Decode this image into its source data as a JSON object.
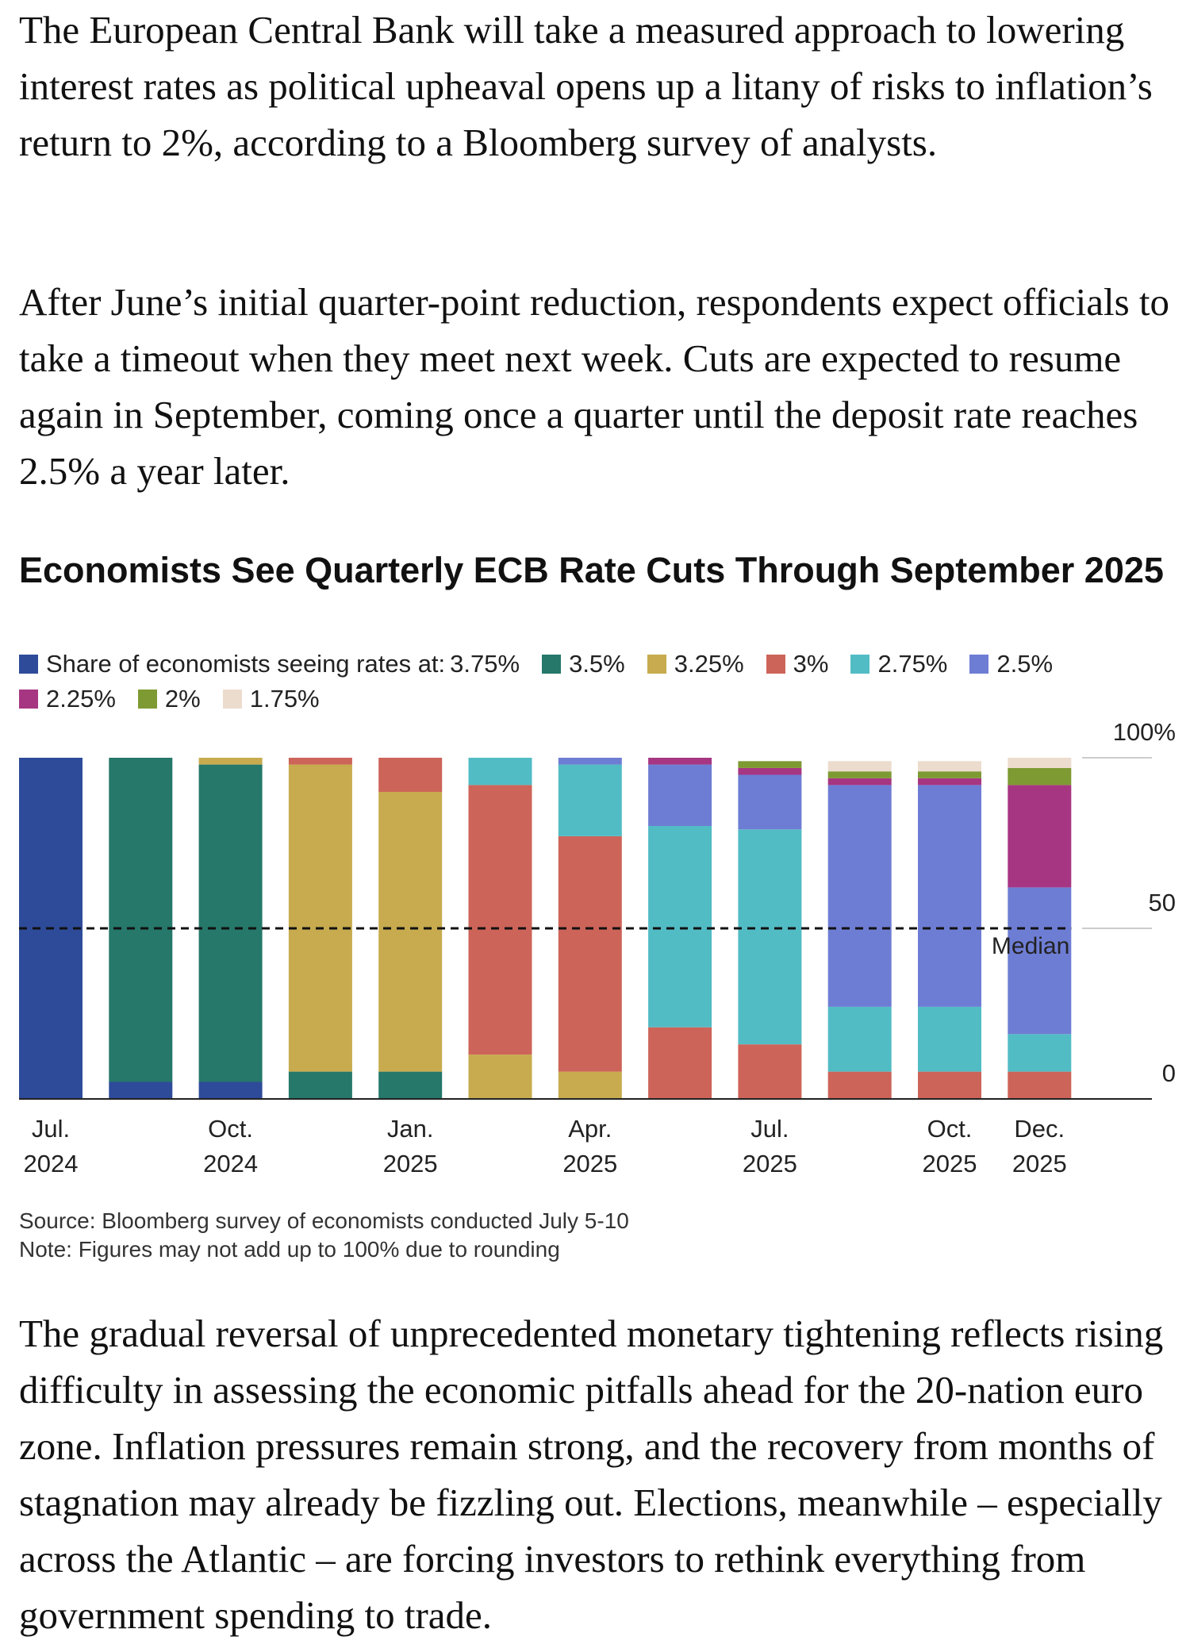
{
  "article": {
    "paragraph_1": "The European Central Bank will take a measured approach to lowering interest rates as political upheaval opens up a litany of risks to inflation’s return to 2%, according to a Bloomberg survey of analysts.",
    "paragraph_2": "After June’s initial quarter-point reduction, respondents expect officials to take a timeout when they meet next week. Cuts are expected to resume again in September, coming once a quarter until the deposit rate reaches 2.5% a year later.",
    "paragraph_3": "The gradual reversal of unprecedented monetary tightening reflects rising difficulty in assessing the economic pitfalls ahead for the 20-nation euro zone. Inflation pressures remain strong, and the recovery from months of stagnation may already be fizzling out. Elections, meanwhile – especially across the Atlantic – are forcing investors to rethink everything from government spending to trade."
  },
  "chart_data": {
    "type": "bar",
    "stacked": true,
    "title": "Economists See Quarterly ECB Rate Cuts Through September 2025",
    "legend_prefix": "Share of economists seeing rates at:",
    "legend_placement": "top-left",
    "grid": false,
    "ylim": [
      0,
      100
    ],
    "y_ticks": [
      "100%",
      "50",
      "0"
    ],
    "y_tick_values": [
      100,
      50,
      0
    ],
    "x_tick_labels": [
      {
        "index": 0,
        "line1": "Jul.",
        "line2": "2024"
      },
      {
        "index": 2,
        "line1": "Oct.",
        "line2": "2024"
      },
      {
        "index": 4,
        "line1": "Jan.",
        "line2": "2025"
      },
      {
        "index": 6,
        "line1": "Apr.",
        "line2": "2025"
      },
      {
        "index": 8,
        "line1": "Jul.",
        "line2": "2025"
      },
      {
        "index": 10,
        "line1": "Oct.",
        "line2": "2025"
      },
      {
        "index": 11,
        "line1": "Dec.",
        "line2": "2025"
      }
    ],
    "reference_line": {
      "value": 50,
      "label": "Median",
      "style": "dashed"
    },
    "bar_count": 12,
    "series": [
      {
        "name": "3.75%",
        "color": "#2e4b9a",
        "values": [
          100,
          5,
          5,
          0,
          0,
          0,
          0,
          0,
          0,
          0,
          0,
          0
        ]
      },
      {
        "name": "3.5%",
        "color": "#25786a",
        "values": [
          0,
          95,
          93,
          8,
          8,
          0,
          0,
          0,
          0,
          0,
          0,
          0
        ]
      },
      {
        "name": "3.25%",
        "color": "#c7ab4e",
        "values": [
          0,
          0,
          2,
          90,
          82,
          13,
          8,
          0,
          0,
          0,
          0,
          0
        ]
      },
      {
        "name": "3%",
        "color": "#cd6459",
        "values": [
          0,
          0,
          0,
          2,
          10,
          79,
          69,
          21,
          16,
          8,
          8,
          8
        ]
      },
      {
        "name": "2.75%",
        "color": "#52bcc5",
        "values": [
          0,
          0,
          0,
          0,
          0,
          8,
          21,
          59,
          63,
          19,
          19,
          11
        ]
      },
      {
        "name": "2.5%",
        "color": "#6e7dd4",
        "values": [
          0,
          0,
          0,
          0,
          0,
          0,
          2,
          18,
          16,
          65,
          65,
          43
        ]
      },
      {
        "name": "2.25%",
        "color": "#a73682",
        "values": [
          0,
          0,
          0,
          0,
          0,
          0,
          0,
          2,
          2,
          2,
          2,
          30
        ]
      },
      {
        "name": "2%",
        "color": "#7e9a33",
        "values": [
          0,
          0,
          0,
          0,
          0,
          0,
          0,
          0,
          2,
          2,
          2,
          5
        ]
      },
      {
        "name": "1.75%",
        "color": "#ecdccd",
        "values": [
          0,
          0,
          0,
          0,
          0,
          0,
          0,
          0,
          0,
          3,
          3,
          3
        ]
      }
    ],
    "source": "Source: Bloomberg survey of economists conducted July 5-10",
    "note": "Note: Figures may not add up to 100% due to rounding"
  }
}
